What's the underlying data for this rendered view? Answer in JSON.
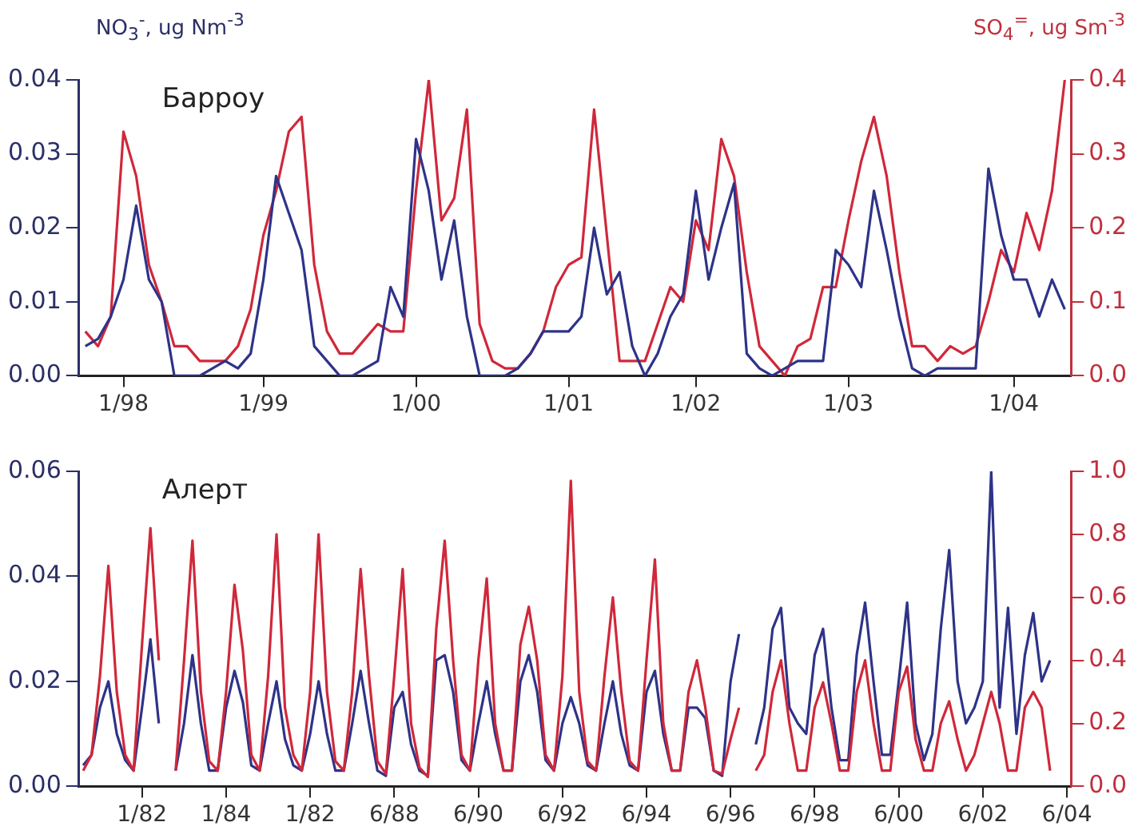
{
  "chart_data": [
    {
      "type": "line",
      "title": "Барроу",
      "ylabel": "NO$_{3}$$^{-}$, ug Nm$^{-3}$",
      "y2label": "SO$_{4}$$^{=}$, ug Sm$^{-3}$",
      "categories": [
        null,
        null,
        null,
        "1/98",
        null,
        null,
        null,
        null,
        null,
        null,
        null,
        null,
        null,
        null,
        "1/99",
        null,
        null,
        null,
        null,
        null,
        null,
        null,
        null,
        null,
        null,
        null,
        "1/00",
        null,
        null,
        null,
        null,
        null,
        null,
        null,
        null,
        null,
        null,
        null,
        "1/01",
        null,
        null,
        null,
        null,
        null,
        null,
        null,
        null,
        null,
        "1/02",
        null,
        null,
        null,
        null,
        null,
        null,
        null,
        null,
        null,
        null,
        null,
        "1/03",
        null,
        null,
        null,
        null,
        null,
        null,
        null,
        null,
        null,
        null,
        null,
        null,
        "1/04",
        null,
        null,
        null,
        null
      ],
      "ylim": [
        0,
        0.04
      ],
      "yticks": [
        {
          "value": 0,
          "label": "0.00"
        },
        {
          "value": 0.01,
          "label": "0.01"
        },
        {
          "value": 0.02,
          "label": "0.02"
        },
        {
          "value": 0.03,
          "label": "0.03"
        },
        {
          "value": 0.04,
          "label": "0.04"
        }
      ],
      "y2lim": [
        0,
        0.4
      ],
      "y2ticks": [
        {
          "value": 0,
          "label": "0.0"
        },
        {
          "value": 0.1,
          "label": "0.1"
        },
        {
          "value": 0.2,
          "label": "0.2"
        },
        {
          "value": 0.3,
          "label": "0.3"
        },
        {
          "value": 0.4,
          "label": "0.4"
        }
      ],
      "series": [
        {
          "color": "#2e3388",
          "values": [
            0.004,
            0.005,
            0.008,
            0.013,
            0.023,
            0.013,
            0.01,
            0,
            0,
            0,
            0.001,
            0.002,
            0.001,
            0.003,
            0.013,
            0.027,
            0.022,
            0.017,
            0.004,
            0.002,
            0,
            0,
            0.001,
            0.002,
            0.012,
            0.008,
            0.032,
            0.025,
            0.013,
            0.021,
            0.008,
            0,
            0,
            0,
            0.001,
            0.003,
            0.006,
            0.006,
            0.006,
            0.008,
            0.02,
            0.011,
            0.014,
            0.004,
            0,
            0.003,
            0.008,
            0.011,
            0.025,
            0.013,
            0.02,
            0.026,
            0.003,
            0.001,
            0,
            0.001,
            0.002,
            0.002,
            0.002,
            0.017,
            0.015,
            0.012,
            0.025,
            0.017,
            0.008,
            0.001,
            0,
            0.001,
            0.001,
            0.001,
            0.001,
            0.028,
            0.019,
            0.013,
            0.013,
            0.008,
            0.013,
            0.009
          ]
        },
        {
          "color": "#d0283a",
          "axis": "y2",
          "values": [
            0.06,
            0.04,
            0.08,
            0.33,
            0.27,
            0.15,
            0.1,
            0.04,
            0.04,
            0.02,
            0.02,
            0.02,
            0.04,
            0.09,
            0.19,
            0.25,
            0.33,
            0.35,
            0.15,
            0.06,
            0.03,
            0.03,
            0.05,
            0.07,
            0.06,
            0.06,
            0.25,
            0.4,
            0.21,
            0.24,
            0.36,
            0.07,
            0.02,
            0.01,
            0.01,
            0.03,
            0.06,
            0.12,
            0.15,
            0.16,
            0.36,
            0.19,
            0.02,
            0.02,
            0.02,
            0.07,
            0.12,
            0.1,
            0.21,
            0.17,
            0.32,
            0.27,
            0.14,
            0.04,
            0.02,
            0,
            0.04,
            0.05,
            0.12,
            0.12,
            0.21,
            0.29,
            0.35,
            0.27,
            0.14,
            0.04,
            0.04,
            0.02,
            0.04,
            0.03,
            0.04,
            0.1,
            0.17,
            0.14,
            0.22,
            0.17,
            0.25,
            0.4
          ]
        }
      ]
    },
    {
      "type": "line",
      "title": "Алерт",
      "categories": [
        null,
        null,
        null,
        null,
        null,
        null,
        null,
        "1/82",
        null,
        null,
        null,
        null,
        null,
        null,
        null,
        null,
        null,
        "1/84",
        null,
        null,
        null,
        null,
        null,
        null,
        null,
        null,
        null,
        "1/82",
        null,
        null,
        null,
        null,
        null,
        null,
        null,
        null,
        null,
        "6/88",
        null,
        null,
        null,
        null,
        null,
        null,
        null,
        null,
        null,
        "6/90",
        null,
        null,
        null,
        null,
        null,
        null,
        null,
        null,
        null,
        "6/92",
        null,
        null,
        null,
        null,
        null,
        null,
        null,
        null,
        null,
        "6/94",
        null,
        null,
        null,
        null,
        null,
        null,
        null,
        null,
        null,
        "6/96",
        null,
        null,
        null,
        null,
        null,
        null,
        null,
        null,
        null,
        "6/98",
        null,
        null,
        null,
        null,
        null,
        null,
        null,
        null,
        null,
        "6/00",
        null,
        null,
        null,
        null,
        null,
        null,
        null,
        null,
        null,
        "6/02",
        null,
        null,
        null,
        null,
        null,
        null,
        null,
        null,
        null,
        "6/04"
      ],
      "ylim": [
        0,
        0.06
      ],
      "yticks": [
        {
          "value": 0,
          "label": "0.00"
        },
        {
          "value": 0.02,
          "label": "0.02"
        },
        {
          "value": 0.04,
          "label": "0.04"
        },
        {
          "value": 0.06,
          "label": "0.06"
        }
      ],
      "y2lim": [
        0,
        1.0
      ],
      "y2ticks": [
        {
          "value": 0,
          "label": "0.0"
        },
        {
          "value": 0.2,
          "label": "0.2"
        },
        {
          "value": 0.4,
          "label": "0.4"
        },
        {
          "value": 0.6,
          "label": "0.6"
        },
        {
          "value": 0.8,
          "label": "0.8"
        },
        {
          "value": 1.0,
          "label": "1.0"
        }
      ],
      "series": [
        {
          "color": "#d0283a",
          "axis": "y2",
          "values": [
            0.05,
            0.1,
            0.35,
            0.7,
            0.3,
            0.1,
            0.05,
            0.45,
            0.82,
            0.4,
            null,
            0.05,
            0.4,
            0.78,
            0.3,
            0.08,
            0.05,
            0.3,
            0.64,
            0.43,
            0.1,
            0.05,
            0.35,
            0.8,
            0.25,
            0.1,
            0.05,
            0.3,
            0.8,
            0.3,
            0.08,
            0.05,
            0.3,
            0.69,
            0.35,
            0.08,
            0.04,
            0.35,
            0.69,
            0.2,
            0.06,
            0.03,
            0.5,
            0.78,
            0.4,
            0.1,
            0.05,
            0.4,
            0.66,
            0.2,
            0.05,
            0.05,
            0.45,
            0.57,
            0.4,
            0.1,
            0.05,
            0.35,
            0.97,
            0.3,
            0.08,
            0.05,
            0.35,
            0.6,
            0.3,
            0.08,
            0.05,
            0.4,
            0.72,
            0.2,
            0.05,
            0.05,
            0.3,
            0.4,
            0.25,
            0.05,
            0.04,
            0.15,
            0.25,
            null,
            0.05,
            0.1,
            0.3,
            0.4,
            0.2,
            0.05,
            0.05,
            0.25,
            0.33,
            0.2,
            0.05,
            0.05,
            0.3,
            0.4,
            0.2,
            0.05,
            0.05,
            0.3,
            0.38,
            0.15,
            0.05,
            0.05,
            0.2,
            0.27,
            0.15,
            0.05,
            0.1,
            0.2,
            0.3,
            0.2,
            0.05,
            0.05,
            0.25,
            0.3,
            0.25,
            0.05,
            null,
            null
          ]
        },
        {
          "color": "#2e3388",
          "values": [
            0.004,
            0.006,
            0.015,
            0.02,
            0.01,
            0.005,
            0.003,
            0.015,
            0.028,
            0.012,
            null,
            0.003,
            0.012,
            0.025,
            0.012,
            0.003,
            0.003,
            0.015,
            0.022,
            0.016,
            0.004,
            0.003,
            0.012,
            0.02,
            0.009,
            0.004,
            0.003,
            0.01,
            0.02,
            0.01,
            0.003,
            0.003,
            0.012,
            0.022,
            0.012,
            0.003,
            0.002,
            0.015,
            0.018,
            0.008,
            0.003,
            0.002,
            0.024,
            0.025,
            0.018,
            0.005,
            0.003,
            0.012,
            0.02,
            0.01,
            0.003,
            0.003,
            0.02,
            0.025,
            0.018,
            0.005,
            0.003,
            0.012,
            0.017,
            0.012,
            0.004,
            0.003,
            0.012,
            0.02,
            0.01,
            0.004,
            0.003,
            0.018,
            0.022,
            0.01,
            0.003,
            0.003,
            0.015,
            0.015,
            0.013,
            0.003,
            0.002,
            0.02,
            0.029,
            null,
            0.008,
            0.015,
            0.03,
            0.034,
            0.015,
            0.012,
            0.01,
            0.025,
            0.03,
            0.015,
            0.005,
            0.005,
            0.025,
            0.035,
            0.02,
            0.006,
            0.006,
            0.02,
            0.035,
            0.012,
            0.005,
            0.01,
            0.03,
            0.045,
            0.02,
            0.012,
            0.015,
            0.02,
            0.06,
            0.015,
            0.034,
            0.01,
            0.025,
            0.033,
            0.02,
            0.024,
            null,
            null
          ]
        }
      ]
    }
  ]
}
